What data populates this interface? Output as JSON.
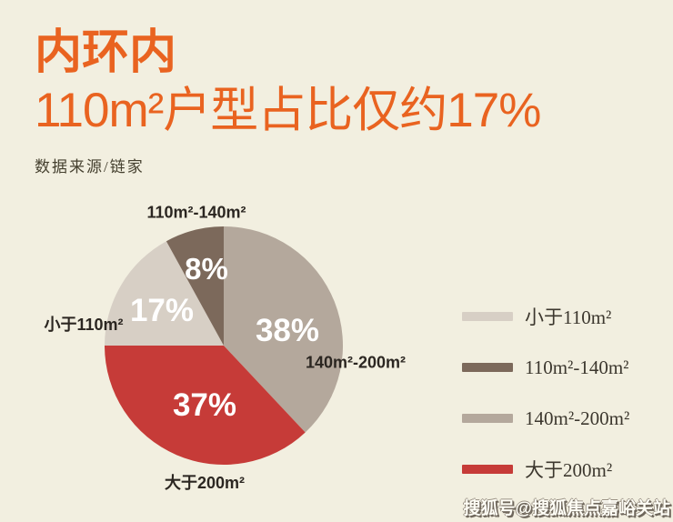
{
  "header": {
    "title": "内环内",
    "subtitle": "110m²户型占比仅约17%",
    "source": "数据来源/链家"
  },
  "chart_data": {
    "type": "pie",
    "title": "内环内110m²户型占比仅约17%",
    "source_note": "数据来源/链家",
    "unit": "%",
    "start_angle": "12-oclock",
    "direction": "clockwise",
    "legend_position": "right",
    "slices": [
      {
        "label": "140m²-200m²",
        "value": 38,
        "pct_label": "38%",
        "color": "#b4a89c"
      },
      {
        "label": "大于200m²",
        "value": 37,
        "pct_label": "37%",
        "color": "#c63b38"
      },
      {
        "label": "小于110m²",
        "value": 17,
        "pct_label": "17%",
        "color": "#d7cfc5"
      },
      {
        "label": "110m²-140m²",
        "value": 8,
        "pct_label": "8%",
        "color": "#7c695b"
      }
    ]
  },
  "legend": {
    "items": [
      {
        "label": "小于110m²",
        "color": "#d7cfc5"
      },
      {
        "label": "110m²-140m²",
        "color": "#7c695b"
      },
      {
        "label": "140m²-200m²",
        "color": "#b4a89c"
      },
      {
        "label": "大于200m²",
        "color": "#c63b38"
      }
    ]
  },
  "watermark": {
    "text": "搜狐号@搜狐焦点嘉峪关站"
  },
  "colors": {
    "background": "#f2efe0",
    "accent_orange": "#e96320",
    "label_dark": "#2b2621",
    "pct_white": "#ffffff"
  }
}
